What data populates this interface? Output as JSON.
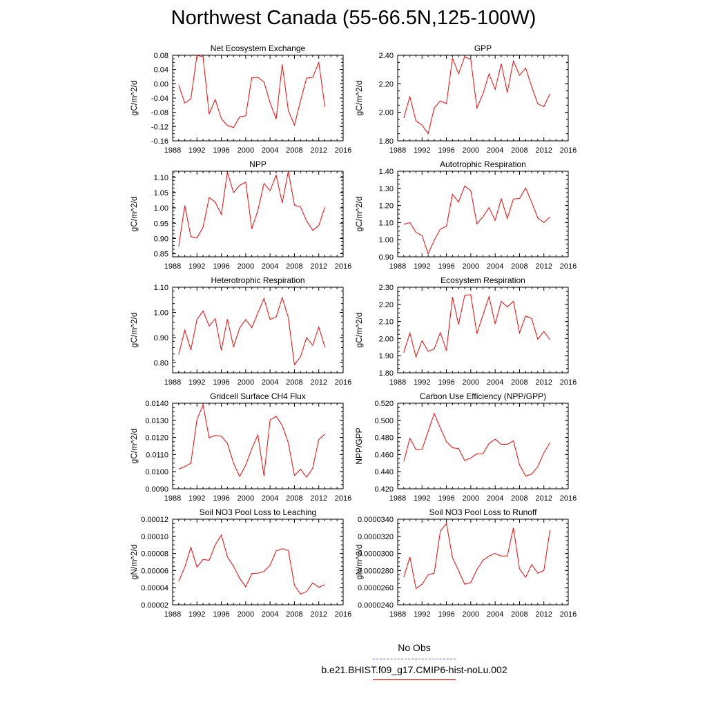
{
  "title": "Northwest Canada (55-66.5N,125-100W)",
  "colors": {
    "model": "#ff0000",
    "obs": "#5555ff",
    "axis": "#000000"
  },
  "legend": {
    "obs_label": "No Obs",
    "model_label": "b.e21.BHIST.f09_g17.CMIP6-hist-noLu.002"
  },
  "chart_data": [
    {
      "type": "line",
      "title": "Net Ecosystem Exchange",
      "ylabel": "gC/m^2/d",
      "xlim": [
        1988,
        2016
      ],
      "xticks": [
        1988,
        1992,
        1996,
        2000,
        2004,
        2008,
        2012,
        2016
      ],
      "ylim": [
        -0.16,
        0.08
      ],
      "yticks": [
        "-0.16",
        "-0.12",
        "-0.08",
        "-0.04",
        "0.00",
        "0.04",
        "0.08"
      ],
      "x": [
        1989,
        1990,
        1991,
        1992,
        1993,
        1994,
        1995,
        1996,
        1997,
        1998,
        1999,
        2000,
        2001,
        2002,
        2003,
        2004,
        2005,
        2006,
        2007,
        2008,
        2009,
        2010,
        2011,
        2012,
        2013
      ],
      "series": [
        {
          "values": [
            -0.004,
            -0.054,
            -0.042,
            0.08,
            0.075,
            -0.085,
            -0.044,
            -0.098,
            -0.117,
            -0.123,
            -0.093,
            -0.09,
            0.017,
            0.018,
            0.005,
            -0.053,
            -0.099,
            0.054,
            -0.075,
            -0.116,
            -0.048,
            0.016,
            0.018,
            0.06,
            -0.064
          ]
        }
      ]
    },
    {
      "type": "line",
      "title": "GPP",
      "ylabel": "gC/m^2/d",
      "xlim": [
        1988,
        2016
      ],
      "xticks": [
        1988,
        1992,
        1996,
        2000,
        2004,
        2008,
        2012,
        2016
      ],
      "ylim": [
        1.8,
        2.4
      ],
      "yticks": [
        "1.80",
        "2.00",
        "2.20",
        "2.40"
      ],
      "x": [
        1989,
        1990,
        1991,
        1992,
        1993,
        1994,
        1995,
        1996,
        1997,
        1998,
        1999,
        2000,
        2001,
        2002,
        2003,
        2004,
        2005,
        2006,
        2007,
        2008,
        2009,
        2010,
        2011,
        2012,
        2013
      ],
      "series": [
        {
          "values": [
            1.96,
            2.11,
            1.94,
            1.91,
            1.85,
            2.03,
            2.08,
            2.06,
            2.38,
            2.27,
            2.39,
            2.37,
            2.03,
            2.13,
            2.27,
            2.16,
            2.34,
            2.14,
            2.36,
            2.26,
            2.31,
            2.18,
            2.06,
            2.04,
            2.13
          ]
        }
      ]
    },
    {
      "type": "line",
      "title": "NPP",
      "ylabel": "gC/m^2/d",
      "xlim": [
        1988,
        2016
      ],
      "xticks": [
        1988,
        1992,
        1996,
        2000,
        2004,
        2008,
        2012,
        2016
      ],
      "ylim": [
        0.84,
        1.12
      ],
      "yticks": [
        "0.85",
        "0.90",
        "0.95",
        "1.00",
        "1.05",
        "1.10"
      ],
      "x": [
        1989,
        1990,
        1991,
        1992,
        1993,
        1994,
        1995,
        1996,
        1997,
        1998,
        1999,
        2000,
        2001,
        2002,
        2003,
        2004,
        2005,
        2006,
        2007,
        2008,
        2009,
        2010,
        2011,
        2012,
        2013
      ],
      "series": [
        {
          "values": [
            0.874,
            1.008,
            0.906,
            0.902,
            0.937,
            1.034,
            1.019,
            0.979,
            1.117,
            1.05,
            1.074,
            1.084,
            0.932,
            0.992,
            1.08,
            1.056,
            1.107,
            1.016,
            1.12,
            1.009,
            1.003,
            0.957,
            0.927,
            0.942,
            1.002
          ]
        }
      ]
    },
    {
      "type": "line",
      "title": "Autotrophic Respiration",
      "ylabel": "gC/m^2/d",
      "xlim": [
        1988,
        2016
      ],
      "xticks": [
        1988,
        1992,
        1996,
        2000,
        2004,
        2008,
        2012,
        2016
      ],
      "ylim": [
        0.9,
        1.4
      ],
      "yticks": [
        "0.90",
        "1.00",
        "1.10",
        "1.20",
        "1.30",
        "1.40"
      ],
      "x": [
        1989,
        1990,
        1991,
        1992,
        1993,
        1994,
        1995,
        1996,
        1997,
        1998,
        1999,
        2000,
        2001,
        2002,
        2003,
        2004,
        2005,
        2006,
        2007,
        2008,
        2009,
        2010,
        2011,
        2012,
        2013
      ],
      "series": [
        {
          "values": [
            1.09,
            1.1,
            1.043,
            1.024,
            0.917,
            0.997,
            1.062,
            1.079,
            1.265,
            1.22,
            1.314,
            1.286,
            1.093,
            1.134,
            1.188,
            1.113,
            1.239,
            1.125,
            1.238,
            1.24,
            1.302,
            1.219,
            1.127,
            1.1,
            1.133
          ]
        }
      ]
    },
    {
      "type": "line",
      "title": "Heterotrophic Respiration",
      "ylabel": "gC/m^2/d",
      "xlim": [
        1988,
        2016
      ],
      "xticks": [
        1988,
        1992,
        1996,
        2000,
        2004,
        2008,
        2012,
        2016
      ],
      "ylim": [
        0.76,
        1.1
      ],
      "yticks": [
        "0.80",
        "0.90",
        "1.00",
        "1.10"
      ],
      "x": [
        1989,
        1990,
        1991,
        1992,
        1993,
        1994,
        1995,
        1996,
        1997,
        1998,
        1999,
        2000,
        2001,
        2002,
        2003,
        2004,
        2005,
        2006,
        2007,
        2008,
        2009,
        2010,
        2011,
        2012,
        2013
      ],
      "series": [
        {
          "values": [
            0.833,
            0.93,
            0.851,
            0.972,
            1.006,
            0.946,
            0.975,
            0.85,
            0.973,
            0.864,
            0.937,
            0.972,
            0.939,
            0.998,
            1.055,
            0.972,
            0.982,
            1.058,
            0.979,
            0.792,
            0.824,
            0.9,
            0.869,
            0.942,
            0.862
          ]
        }
      ]
    },
    {
      "type": "line",
      "title": "Ecosystem Respiration",
      "ylabel": "gC/m^2/d",
      "xlim": [
        1988,
        2016
      ],
      "xticks": [
        1988,
        1992,
        1996,
        2000,
        2004,
        2008,
        2012,
        2016
      ],
      "ylim": [
        1.8,
        2.3
      ],
      "yticks": [
        "1.80",
        "1.90",
        "2.00",
        "2.10",
        "2.20",
        "2.30"
      ],
      "x": [
        1989,
        1990,
        1991,
        1992,
        1993,
        1994,
        1995,
        1996,
        1997,
        1998,
        1999,
        2000,
        2001,
        2002,
        2003,
        2004,
        2005,
        2006,
        2007,
        2008,
        2009,
        2010,
        2011,
        2012,
        2013
      ],
      "series": [
        {
          "values": [
            1.918,
            2.033,
            1.893,
            1.988,
            1.925,
            1.94,
            2.035,
            1.93,
            2.243,
            2.082,
            2.253,
            2.256,
            2.029,
            2.137,
            2.245,
            2.085,
            2.217,
            2.185,
            2.218,
            2.033,
            2.132,
            2.117,
            1.996,
            2.042,
            1.993
          ]
        }
      ]
    },
    {
      "type": "line",
      "title": "Gridcell Surface CH4 Flux",
      "ylabel": "gC/m^2/d",
      "xlim": [
        1988,
        2016
      ],
      "xticks": [
        1988,
        1992,
        1996,
        2000,
        2004,
        2008,
        2012,
        2016
      ],
      "ylim": [
        0.009,
        0.014
      ],
      "yticks": [
        "0.0090",
        "0.0100",
        "0.0110",
        "0.0120",
        "0.0130",
        "0.0140"
      ],
      "x": [
        1989,
        1990,
        1991,
        1992,
        1993,
        1994,
        1995,
        1996,
        1997,
        1998,
        1999,
        2000,
        2001,
        2002,
        2003,
        2004,
        2005,
        2006,
        2007,
        2008,
        2009,
        2010,
        2011,
        2012,
        2013
      ],
      "series": [
        {
          "values": [
            0.01015,
            0.0103,
            0.0105,
            0.01305,
            0.0139,
            0.01198,
            0.01212,
            0.01207,
            0.01165,
            0.0105,
            0.00972,
            0.01038,
            0.01135,
            0.01215,
            0.00975,
            0.01302,
            0.01323,
            0.0127,
            0.01168,
            0.00978,
            0.01015,
            0.00968,
            0.0102,
            0.01188,
            0.0122
          ]
        }
      ]
    },
    {
      "type": "line",
      "title": "Carbon Use Efficiency (NPP/GPP)",
      "ylabel": "NPP/GPP",
      "xlim": [
        1988,
        2016
      ],
      "xticks": [
        1988,
        1992,
        1996,
        2000,
        2004,
        2008,
        2012,
        2016
      ],
      "ylim": [
        0.42,
        0.52
      ],
      "yticks": [
        "0.420",
        "0.440",
        "0.460",
        "0.480",
        "0.500",
        "0.520"
      ],
      "x": [
        1989,
        1990,
        1991,
        1992,
        1993,
        1994,
        1995,
        1996,
        1997,
        1998,
        1999,
        2000,
        2001,
        2002,
        2003,
        2004,
        2005,
        2006,
        2007,
        2008,
        2009,
        2010,
        2011,
        2012,
        2013
      ],
      "series": [
        {
          "values": [
            0.452,
            0.479,
            0.466,
            0.466,
            0.487,
            0.508,
            0.491,
            0.475,
            0.468,
            0.467,
            0.453,
            0.456,
            0.461,
            0.461,
            0.473,
            0.478,
            0.472,
            0.472,
            0.476,
            0.448,
            0.435,
            0.437,
            0.446,
            0.462,
            0.474
          ]
        }
      ]
    },
    {
      "type": "line",
      "title": "Soil NO3 Pool Loss to Leaching",
      "ylabel": "gN/m^2/d",
      "xlim": [
        1988,
        2016
      ],
      "xticks": [
        1988,
        1992,
        1996,
        2000,
        2004,
        2008,
        2012,
        2016
      ],
      "ylim": [
        2e-05,
        0.00012
      ],
      "yticks": [
        "0.00002",
        "0.00004",
        "0.00006",
        "0.00008",
        "0.00010",
        "0.00012"
      ],
      "x": [
        1989,
        1990,
        1991,
        1992,
        1993,
        1994,
        1995,
        1996,
        1997,
        1998,
        1999,
        2000,
        2001,
        2002,
        2003,
        2004,
        2005,
        2006,
        2007,
        2008,
        2009,
        2010,
        2011,
        2012,
        2013
      ],
      "series": [
        {
          "values": [
            4.75e-05,
            6.4e-05,
            8.7e-05,
            6.4e-05,
            7.3e-05,
            7.2e-05,
            9e-05,
            0.0001015,
            7.6e-05,
            6.5e-05,
            5.1e-05,
            4.1e-05,
            5.65e-05,
            5.7e-05,
            5.9e-05,
            6.6e-05,
            8.3e-05,
            8.55e-05,
            8.35e-05,
            4.3e-05,
            3.25e-05,
            3.55e-05,
            4.55e-05,
            4.05e-05,
            4.35e-05
          ]
        }
      ]
    },
    {
      "type": "line",
      "title": "Soil NO3 Pool Loss to Runoff",
      "ylabel": "gN/m^2/d",
      "xlim": [
        1988,
        2016
      ],
      "xticks": [
        1988,
        1992,
        1996,
        2000,
        2004,
        2008,
        2012,
        2016
      ],
      "ylim": [
        2.4e-05,
        3.4e-05
      ],
      "yticks": [
        "0.0000240",
        "0.0000260",
        "0.0000280",
        "0.0000300",
        "0.0000320",
        "0.0000340"
      ],
      "x": [
        1989,
        1990,
        1991,
        1992,
        1993,
        1994,
        1995,
        1996,
        1997,
        1998,
        1999,
        2000,
        2001,
        2002,
        2003,
        2004,
        2005,
        2006,
        2007,
        2008,
        2009,
        2010,
        2011,
        2012,
        2013
      ],
      "series": [
        {
          "values": [
            2.72e-05,
            2.96e-05,
            2.59e-05,
            2.64e-05,
            2.75e-05,
            2.77e-05,
            3.26e-05,
            3.35e-05,
            2.95e-05,
            2.8e-05,
            2.64e-05,
            2.66e-05,
            2.81e-05,
            2.92e-05,
            2.97e-05,
            3e-05,
            2.97e-05,
            2.97e-05,
            3.3e-05,
            2.82e-05,
            2.72e-05,
            2.87e-05,
            2.77e-05,
            2.8e-05,
            3.27e-05
          ]
        }
      ]
    }
  ]
}
